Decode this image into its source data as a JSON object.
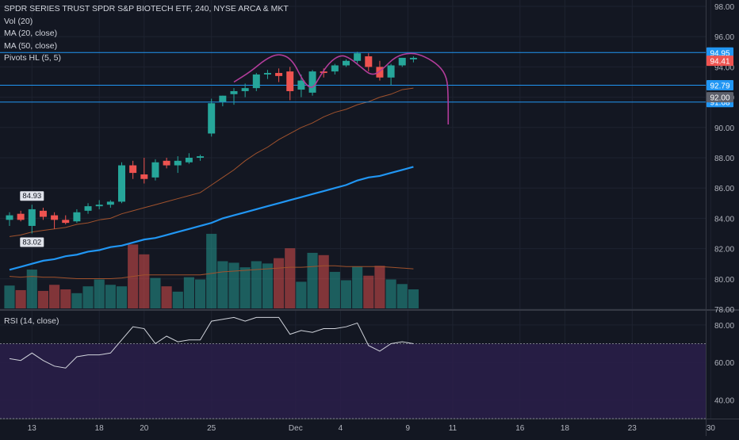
{
  "header": {
    "title": "SPDR SERIES TRUST SPDR S&P BIOTECH ETF, 240, NYSE ARCA & MKT",
    "indicators": [
      "Vol (20)",
      "MA (20, close)",
      "MA (50, close)",
      "Pivots HL (5, 5)"
    ],
    "rsi_label": "RSI (14, close)"
  },
  "colors": {
    "background": "#131722",
    "up": "#26a69a",
    "down": "#ef5350",
    "ma20": "#a0522d",
    "ma50": "#2196f3",
    "pattern": "#b23c9a",
    "hline": "#2196f3",
    "rsi_band": "#2a1f4a",
    "grid": "#1e2330"
  },
  "chart_data": [
    {
      "type": "candlestick",
      "title": "SPDR SERIES TRUST SPDR S&P BIOTECH ETF, 240, NYSE ARCA & MKT",
      "timeframe": "240",
      "ylim": [
        78.0,
        98.0
      ],
      "y_ticks": [
        "98.00",
        "96.00",
        "94.00",
        "92.00",
        "90.00",
        "88.00",
        "86.00",
        "84.00",
        "82.00",
        "80.00",
        "78.00"
      ],
      "x_ticks": [
        "13",
        "18",
        "20",
        "25",
        "Dec",
        "4",
        "9",
        "11",
        "16",
        "18",
        "23",
        "30"
      ],
      "x_tick_index": [
        2,
        8,
        12,
        18,
        25.5,
        29.5,
        35.5,
        39.5,
        45.5,
        49.5,
        55.5,
        62.5
      ],
      "candles": [
        {
          "o": 83.9,
          "h": 84.4,
          "l": 83.5,
          "c": 84.2
        },
        {
          "o": 84.3,
          "h": 84.5,
          "l": 83.8,
          "c": 83.9
        },
        {
          "o": 83.5,
          "h": 84.9,
          "l": 83.0,
          "c": 84.6
        },
        {
          "o": 84.5,
          "h": 84.7,
          "l": 83.9,
          "c": 84.1
        },
        {
          "o": 84.2,
          "h": 84.4,
          "l": 83.3,
          "c": 83.9
        },
        {
          "o": 83.9,
          "h": 84.2,
          "l": 83.6,
          "c": 83.7
        },
        {
          "o": 83.8,
          "h": 84.6,
          "l": 83.7,
          "c": 84.4
        },
        {
          "o": 84.5,
          "h": 85.0,
          "l": 84.3,
          "c": 84.8
        },
        {
          "o": 84.8,
          "h": 85.2,
          "l": 84.6,
          "c": 84.9
        },
        {
          "o": 84.9,
          "h": 85.2,
          "l": 84.7,
          "c": 85.1
        },
        {
          "o": 85.1,
          "h": 87.7,
          "l": 85.0,
          "c": 87.5
        },
        {
          "o": 87.5,
          "h": 87.8,
          "l": 86.6,
          "c": 87.0
        },
        {
          "o": 86.9,
          "h": 88.0,
          "l": 86.3,
          "c": 86.6
        },
        {
          "o": 86.7,
          "h": 87.9,
          "l": 86.5,
          "c": 87.7
        },
        {
          "o": 87.8,
          "h": 88.0,
          "l": 87.3,
          "c": 87.5
        },
        {
          "o": 87.5,
          "h": 88.1,
          "l": 87.0,
          "c": 87.8
        },
        {
          "o": 87.7,
          "h": 88.3,
          "l": 87.6,
          "c": 88.0
        },
        {
          "o": 88.0,
          "h": 88.2,
          "l": 87.8,
          "c": 88.1
        },
        {
          "o": 89.6,
          "h": 91.9,
          "l": 89.4,
          "c": 91.6
        },
        {
          "o": 91.7,
          "h": 92.1,
          "l": 91.4,
          "c": 92.1
        },
        {
          "o": 92.2,
          "h": 92.6,
          "l": 91.5,
          "c": 92.4
        },
        {
          "o": 92.4,
          "h": 92.9,
          "l": 92.0,
          "c": 92.6
        },
        {
          "o": 92.6,
          "h": 93.6,
          "l": 92.4,
          "c": 93.5
        },
        {
          "o": 93.5,
          "h": 93.8,
          "l": 93.2,
          "c": 93.6
        },
        {
          "o": 93.6,
          "h": 93.9,
          "l": 93.0,
          "c": 93.4
        },
        {
          "o": 93.7,
          "h": 94.0,
          "l": 91.8,
          "c": 92.4
        },
        {
          "o": 92.5,
          "h": 93.5,
          "l": 92.0,
          "c": 93.1
        },
        {
          "o": 92.3,
          "h": 93.8,
          "l": 92.1,
          "c": 93.7
        },
        {
          "o": 93.7,
          "h": 93.9,
          "l": 93.3,
          "c": 93.6
        },
        {
          "o": 93.7,
          "h": 94.2,
          "l": 93.5,
          "c": 94.1
        },
        {
          "o": 94.1,
          "h": 94.5,
          "l": 94.0,
          "c": 94.4
        },
        {
          "o": 94.4,
          "h": 95.0,
          "l": 94.2,
          "c": 94.9
        },
        {
          "o": 94.7,
          "h": 94.9,
          "l": 93.7,
          "c": 94.0
        },
        {
          "o": 94.0,
          "h": 94.4,
          "l": 93.1,
          "c": 93.3
        },
        {
          "o": 93.3,
          "h": 94.2,
          "l": 92.8,
          "c": 94.1
        },
        {
          "o": 94.1,
          "h": 94.6,
          "l": 94.0,
          "c": 94.6
        },
        {
          "o": 94.5,
          "h": 94.7,
          "l": 94.3,
          "c": 94.6
        }
      ],
      "volume_max": 100,
      "volume": [
        30,
        24,
        51,
        23,
        31,
        25,
        20,
        29,
        38,
        31,
        29,
        84,
        71,
        40,
        29,
        22,
        41,
        38,
        98,
        62,
        60,
        54,
        62,
        59,
        66,
        79,
        35,
        73,
        70,
        48,
        37,
        55,
        43,
        56,
        38,
        32,
        25
      ],
      "ma20": [
        82.8,
        82.9,
        83.1,
        83.2,
        83.3,
        83.4,
        83.6,
        83.7,
        83.9,
        84.0,
        84.3,
        84.5,
        84.7,
        84.9,
        85.1,
        85.3,
        85.5,
        85.7,
        86.2,
        86.7,
        87.2,
        87.8,
        88.3,
        88.7,
        89.2,
        89.6,
        90.0,
        90.3,
        90.7,
        91.0,
        91.2,
        91.5,
        91.7,
        92.0,
        92.2,
        92.5,
        92.6
      ],
      "ma50": [
        80.6,
        80.8,
        81.0,
        81.2,
        81.3,
        81.5,
        81.6,
        81.8,
        81.9,
        82.1,
        82.2,
        82.4,
        82.6,
        82.7,
        82.9,
        83.1,
        83.3,
        83.5,
        83.7,
        84.0,
        84.2,
        84.4,
        84.6,
        84.8,
        85.0,
        85.2,
        85.4,
        85.6,
        85.8,
        86.0,
        86.2,
        86.5,
        86.7,
        86.8,
        87.0,
        87.2,
        87.4
      ],
      "volume_ma": [
        42,
        41,
        42,
        41,
        41,
        40,
        39,
        39,
        39,
        39,
        40,
        42,
        44,
        44,
        44,
        44,
        44,
        44,
        46,
        48,
        49,
        50,
        51,
        52,
        53,
        54,
        54,
        55,
        56,
        56,
        55,
        55,
        55,
        55,
        54,
        53,
        52
      ],
      "pivot_labels": [
        {
          "index": 2,
          "value": 84.93,
          "text": "84.93",
          "position": "above"
        },
        {
          "index": 2,
          "value": 83.02,
          "text": "83.02",
          "position": "below"
        }
      ],
      "horizontal_lines": [
        {
          "value": 94.95,
          "label": "94.95",
          "style": "line"
        },
        {
          "value": 92.79,
          "label": "92.79",
          "style": "line"
        },
        {
          "value": 91.68,
          "label": "91.68",
          "style": "line"
        }
      ],
      "price_labels": [
        {
          "value": 94.41,
          "label": "94.41",
          "color": "#ef5350"
        },
        {
          "value": 92.0,
          "label": "92.00",
          "color": "#5d606b"
        }
      ],
      "cup_and_handle_pattern": {
        "points": [
          {
            "x": 20.0,
            "y": 93.0
          },
          {
            "x": 21.5,
            "y": 93.7
          },
          {
            "x": 22.8,
            "y": 94.5
          },
          {
            "x": 24.0,
            "y": 94.9
          },
          {
            "x": 25.2,
            "y": 94.5
          },
          {
            "x": 26.2,
            "y": 93.0
          },
          {
            "x": 27.0,
            "y": 92.5
          },
          {
            "x": 27.6,
            "y": 93.3
          },
          {
            "x": 28.5,
            "y": 94.3
          },
          {
            "x": 29.5,
            "y": 94.8
          },
          {
            "x": 30.3,
            "y": 94.6
          },
          {
            "x": 31.3,
            "y": 94.0
          },
          {
            "x": 32.3,
            "y": 93.4
          },
          {
            "x": 33.2,
            "y": 93.8
          },
          {
            "x": 34.4,
            "y": 94.7
          },
          {
            "x": 35.8,
            "y": 94.95
          },
          {
            "x": 37.0,
            "y": 94.7
          },
          {
            "x": 38.3,
            "y": 94.1
          },
          {
            "x": 39.0,
            "y": 93.3
          },
          {
            "x": 39.1,
            "y": 92.0
          },
          {
            "x": 39.1,
            "y": 90.2
          }
        ]
      }
    },
    {
      "type": "line",
      "title": "RSI (14, close)",
      "ylim": [
        30,
        85
      ],
      "y_ticks": [
        "80.00",
        "60.00",
        "40.00"
      ],
      "band": [
        30,
        70
      ],
      "values": [
        62,
        61,
        65,
        61,
        58,
        57,
        63,
        64,
        64,
        65,
        72,
        79,
        78,
        70,
        74,
        71,
        72,
        72,
        82,
        83,
        84,
        82,
        84,
        84,
        84,
        75,
        77,
        76,
        78,
        78,
        79,
        81,
        69,
        66,
        70,
        71,
        70
      ]
    }
  ]
}
